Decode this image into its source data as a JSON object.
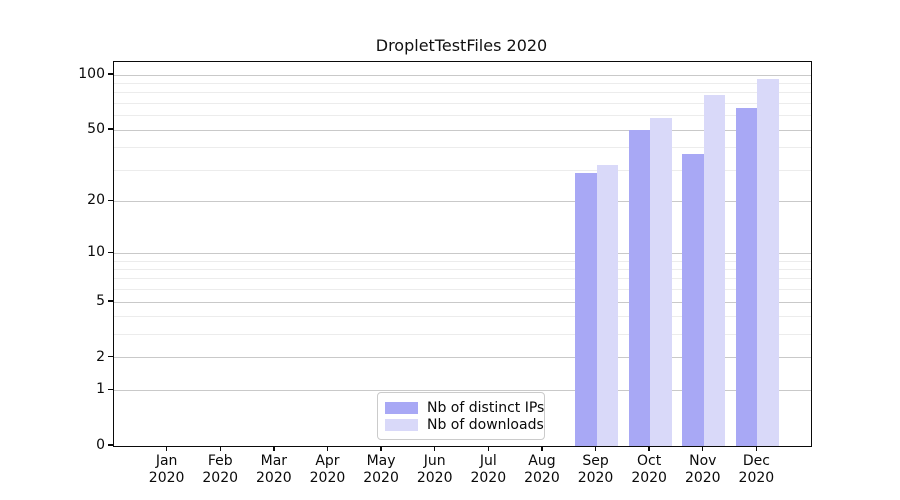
{
  "chart_data": {
    "type": "bar",
    "title": "DropletTestFiles 2020",
    "categories": [
      "Jan 2020",
      "Feb 2020",
      "Mar 2020",
      "Apr 2020",
      "May 2020",
      "Jun 2020",
      "Jul 2020",
      "Aug 2020",
      "Sep 2020",
      "Oct 2020",
      "Nov 2020",
      "Dec 2020"
    ],
    "series": [
      {
        "name": "Nb of distinct IPs",
        "color": "#a8a8f5",
        "values": [
          0,
          0,
          0,
          0,
          0,
          0,
          0,
          0,
          29,
          50,
          37,
          66
        ]
      },
      {
        "name": "Nb of downloads",
        "color": "#d9d9f9",
        "values": [
          0,
          0,
          0,
          0,
          0,
          0,
          0,
          0,
          32,
          58,
          78,
          95
        ]
      }
    ],
    "xlabel": "",
    "ylabel": "",
    "yscale": "log1p",
    "ylim": [
      0,
      118
    ],
    "y_major_ticks": [
      0,
      1,
      2,
      5,
      10,
      20,
      50,
      100
    ],
    "y_minor_ticks": [
      3,
      4,
      6,
      7,
      8,
      9,
      30,
      40,
      60,
      70,
      80,
      90
    ],
    "grid": "horizontal, major and minor",
    "legend_position": "lower center inside plot"
  },
  "colors": {
    "major_grid": "#c9c9c9",
    "minor_grid": "#ececec",
    "spine": "#0a0a0a",
    "background": "#ffffff",
    "series_distinct_ips": "#a8a8f5",
    "series_downloads": "#d9d9f9"
  }
}
